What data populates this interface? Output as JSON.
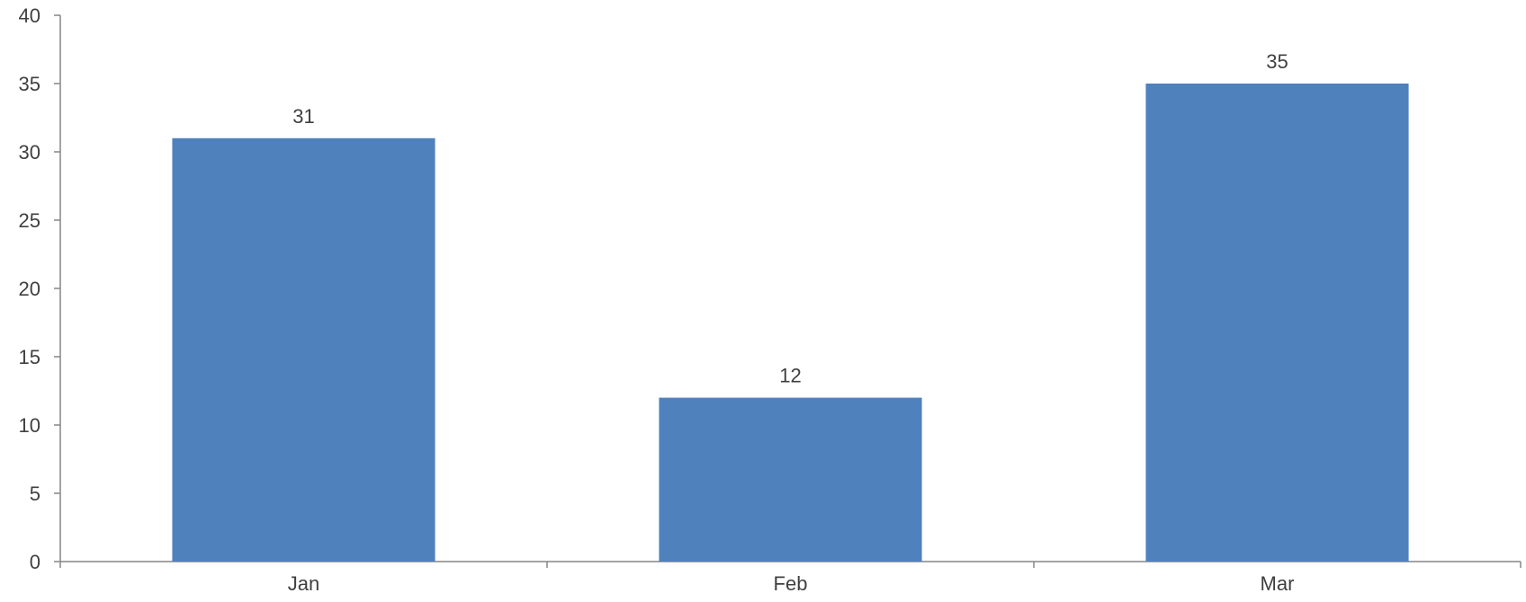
{
  "chart_data": {
    "type": "bar",
    "title": "",
    "xlabel": "",
    "ylabel": "",
    "categories": [
      "Jan",
      "Feb",
      "Mar"
    ],
    "values": [
      31,
      12,
      35
    ],
    "data_labels": [
      "31",
      "12",
      "35"
    ],
    "ylim": [
      0,
      40
    ],
    "yticks": [
      "0",
      "5",
      "10",
      "15",
      "20",
      "25",
      "30",
      "35",
      "40"
    ],
    "grid": false,
    "legend": "none",
    "bar_color": "#4f81bd",
    "axis_color": "#868686",
    "text_color": "#404040"
  }
}
